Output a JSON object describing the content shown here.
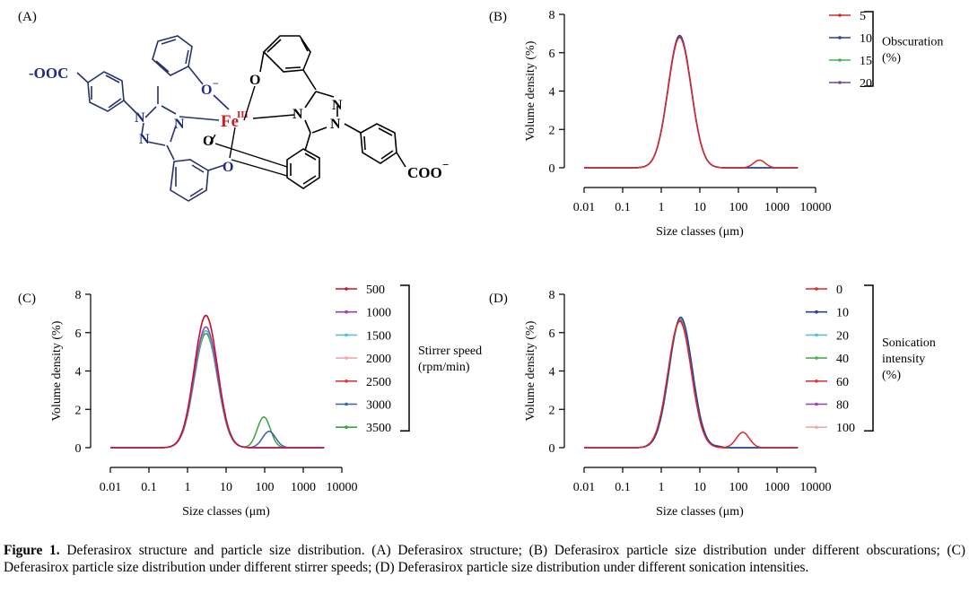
{
  "molecule": {
    "panel_label": "(A)",
    "atoms": {
      "cooh_left": "-OOC",
      "cooh_right": "COO",
      "charge": "−",
      "o_minus": "O",
      "fe": "Fe",
      "fe_ox": "III",
      "n": "N",
      "o": "O"
    }
  },
  "chart_data": [
    {
      "type": "line",
      "panel_label": "(B)",
      "title": "",
      "xlabel": "Size classes (μm)",
      "ylabel": "Volume density (%)",
      "x_scale": "log",
      "xlim": [
        0.01,
        10000
      ],
      "ylim": [
        0,
        8
      ],
      "x_ticks": [
        "0.01",
        "0.1",
        "1",
        "10",
        "100",
        "1000",
        "10000"
      ],
      "y_ticks": [
        "0",
        "2",
        "4",
        "6",
        "8"
      ],
      "legend_title": "Obscuration (%)",
      "legend_title_lines": [
        "Obscuration",
        "(%)"
      ],
      "legend_position": "right",
      "series": [
        {
          "name": "5",
          "color": "#d9262e",
          "peak": 6.8,
          "center": 3.0,
          "sigma": 0.3,
          "secondary": {
            "peak": 0.4,
            "center": 350,
            "sigma": 0.15
          }
        },
        {
          "name": "10",
          "color": "#2b3f93",
          "peak": 6.9,
          "center": 3.0,
          "sigma": 0.3
        },
        {
          "name": "15",
          "color": "#4caf50",
          "peak": 6.85,
          "center": 3.0,
          "sigma": 0.3
        },
        {
          "name": "20",
          "color": "#7b3f9e",
          "peak": 6.8,
          "center": 3.0,
          "sigma": 0.3
        }
      ]
    },
    {
      "type": "line",
      "panel_label": "(C)",
      "title": "",
      "xlabel": "Size classes (μm)",
      "ylabel": "Volume density (%)",
      "x_scale": "log",
      "xlim": [
        0.01,
        10000
      ],
      "ylim": [
        0,
        8
      ],
      "x_ticks": [
        "0.01",
        "0.1",
        "1",
        "10",
        "100",
        "1000",
        "10000"
      ],
      "y_ticks": [
        "0",
        "2",
        "4",
        "6",
        "8"
      ],
      "legend_title": "Stirrer speed (rpm/min)",
      "legend_title_lines": [
        "Stirrer speed",
        "(rpm/min)"
      ],
      "legend_position": "right",
      "series": [
        {
          "name": "500",
          "color": "#c0152f",
          "peak": 6.9,
          "center": 3.0,
          "sigma": 0.3
        },
        {
          "name": "1000",
          "color": "#8e44ad",
          "peak": 6.3,
          "center": 3.0,
          "sigma": 0.3
        },
        {
          "name": "1500",
          "color": "#5bc0c8",
          "peak": 6.1,
          "center": 3.0,
          "sigma": 0.3
        },
        {
          "name": "2000",
          "color": "#f4a6ad",
          "peak": 6.85,
          "center": 3.0,
          "sigma": 0.3
        },
        {
          "name": "2500",
          "color": "#e8343f",
          "peak": 6.9,
          "center": 3.0,
          "sigma": 0.3
        },
        {
          "name": "3000",
          "color": "#3f5fa8",
          "peak": 6.1,
          "center": 3.0,
          "sigma": 0.3,
          "secondary": {
            "peak": 0.85,
            "center": 130,
            "sigma": 0.17
          }
        },
        {
          "name": "3500",
          "color": "#3aa33a",
          "peak": 5.95,
          "center": 3.0,
          "sigma": 0.3,
          "secondary": {
            "peak": 1.6,
            "center": 95,
            "sigma": 0.17
          }
        }
      ]
    },
    {
      "type": "line",
      "panel_label": "(D)",
      "title": "",
      "xlabel": "Size classes (μm)",
      "ylabel": "Volume density (%)",
      "x_scale": "log",
      "xlim": [
        0.01,
        10000
      ],
      "ylim": [
        0,
        8
      ],
      "x_ticks": [
        "0.01",
        "0.1",
        "1",
        "10",
        "100",
        "1000",
        "10000"
      ],
      "y_ticks": [
        "0",
        "2",
        "4",
        "6",
        "8"
      ],
      "legend_title": "Sonication intensity (%)",
      "legend_title_lines": [
        "Sonication",
        "intensity",
        "(%)"
      ],
      "legend_position": "right",
      "series": [
        {
          "name": "0",
          "color": "#d9262e",
          "peak": 6.6,
          "center": 3.0,
          "sigma": 0.3,
          "secondary": {
            "peak": 0.8,
            "center": 130,
            "sigma": 0.17
          }
        },
        {
          "name": "10",
          "color": "#2b3f93",
          "peak": 6.8,
          "center": 3.2,
          "sigma": 0.3,
          "secondary": {
            "peak": 0.05,
            "center": 30,
            "sigma": 0.1
          }
        },
        {
          "name": "20",
          "color": "#5bc0c8",
          "peak": 6.75,
          "center": 3.2,
          "sigma": 0.3
        },
        {
          "name": "40",
          "color": "#4caf50",
          "peak": 6.7,
          "center": 3.2,
          "sigma": 0.3
        },
        {
          "name": "60",
          "color": "#e8343f",
          "peak": 6.6,
          "center": 3.1,
          "sigma": 0.3
        },
        {
          "name": "80",
          "color": "#8e44ad",
          "peak": 6.65,
          "center": 3.1,
          "sigma": 0.3
        },
        {
          "name": "100",
          "color": "#f4a6ad",
          "peak": 6.6,
          "center": 3.1,
          "sigma": 0.3
        }
      ]
    }
  ],
  "caption": {
    "bold": "Figure 1.",
    "text": " Deferasirox structure and particle size distribution. (A) Deferasirox structure; (B) Deferasirox particle size distribution under different obscurations; (C) Deferasirox particle size distribution under different stirrer speeds; (D) Deferasirox particle size distribution under different sonication intensities."
  }
}
